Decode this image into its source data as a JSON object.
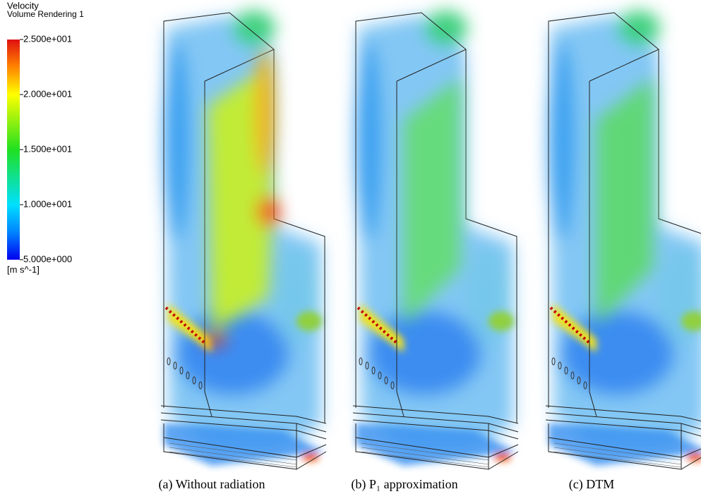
{
  "legend": {
    "title": "Velocity",
    "subtitle": "Volume Rendering 1",
    "ticks": [
      "2.500e+001",
      "2.000e+001",
      "1.500e+001",
      "1.000e+001",
      "5.000e+000"
    ],
    "unit": "[m s^-1]"
  },
  "panels": [
    {
      "caption": "(a) Without radiation"
    },
    {
      "caption": "(b) P₁ approximation"
    },
    {
      "caption": "(c) DTM"
    }
  ]
}
